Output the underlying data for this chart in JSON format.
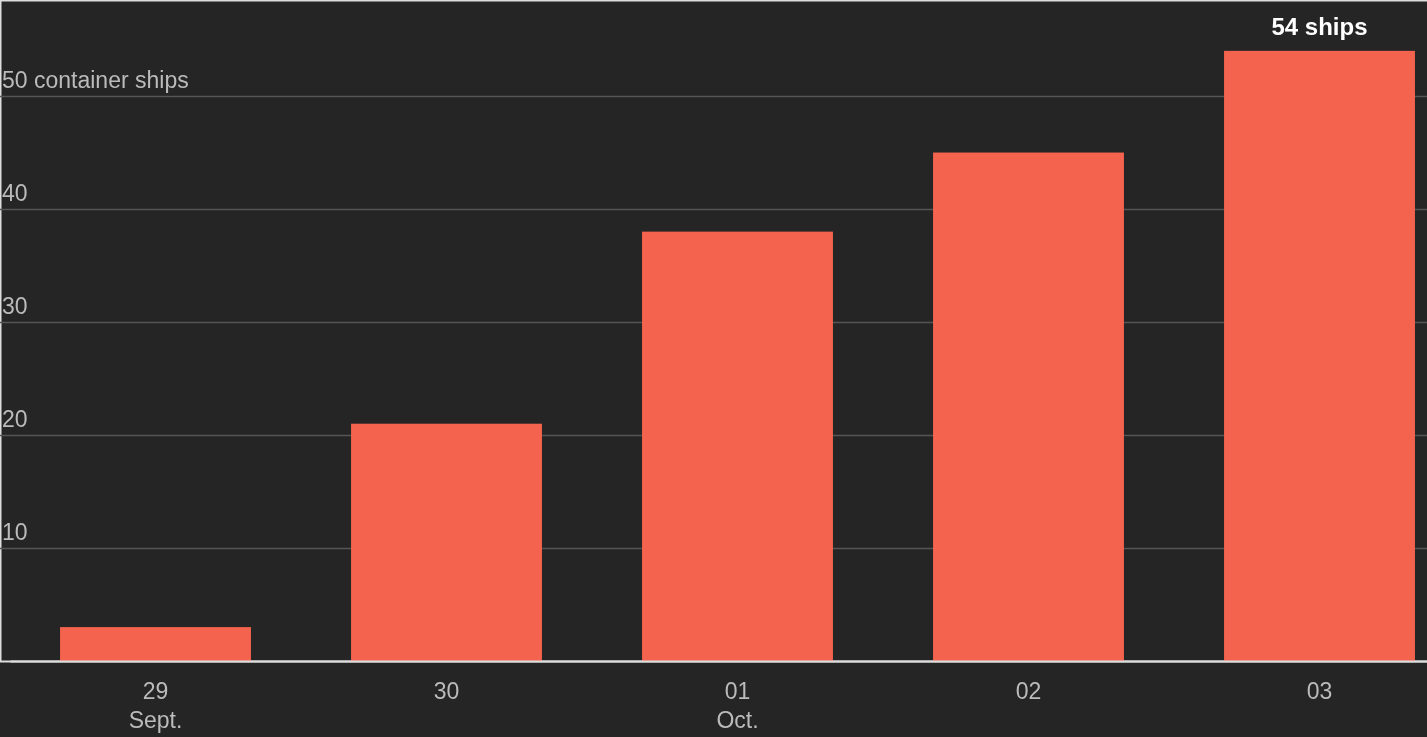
{
  "chart_data": {
    "type": "bar",
    "categories": [
      "29\nSept.",
      "30",
      "01\nOct.",
      "02",
      "03"
    ],
    "values": [
      3,
      21,
      38,
      45,
      54
    ],
    "value_labels": [
      null,
      null,
      null,
      null,
      "54 ships"
    ],
    "color": "#f4634e",
    "ylim": [
      0,
      58.5
    ],
    "yticks": [
      10,
      20,
      30,
      40,
      {
        "value": 50,
        "label": "50 container ships"
      }
    ],
    "grid": "y"
  }
}
